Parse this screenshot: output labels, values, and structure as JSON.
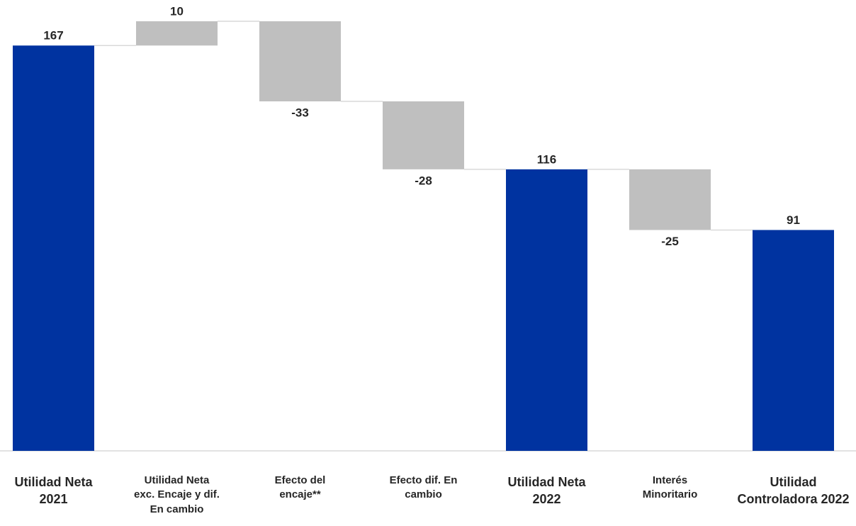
{
  "chart_data": {
    "type": "waterfall",
    "categories": [
      "Utilidad Neta 2021",
      "Utilidad Neta exc. Encaje y dif. En cambio",
      "Efecto del encaje**",
      "Efecto dif. En cambio",
      "Utilidad Neta 2022",
      "Interés Minoritario",
      "Utilidad Controladora 2022"
    ],
    "values": [
      167,
      10,
      -33,
      -28,
      116,
      -25,
      91
    ],
    "is_total": [
      true,
      false,
      false,
      false,
      true,
      false,
      true
    ],
    "total_color": "#0033a0",
    "delta_color": "#bfbfbf"
  }
}
